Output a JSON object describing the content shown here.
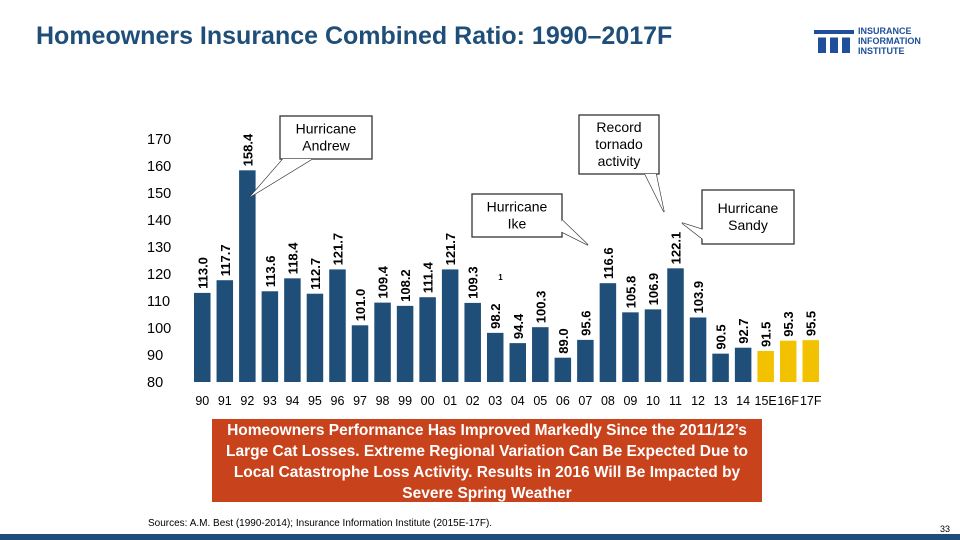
{
  "title": "Homeowners Insurance Combined Ratio: 1990–2017F",
  "logo": {
    "lines": [
      "INSURANCE",
      "INFORMATION",
      "INSTITUTE"
    ],
    "icon": "iii-logo-icon"
  },
  "chart_data": {
    "type": "bar",
    "categories": [
      "90",
      "91",
      "92",
      "93",
      "94",
      "95",
      "96",
      "97",
      "98",
      "99",
      "00",
      "01",
      "02",
      "03",
      "04",
      "05",
      "06",
      "07",
      "08",
      "09",
      "10",
      "11",
      "12",
      "13",
      "14",
      "15E",
      "16F",
      "17F"
    ],
    "values": [
      113.0,
      117.7,
      158.4,
      113.6,
      118.4,
      112.7,
      121.7,
      101.0,
      109.4,
      108.2,
      111.4,
      121.7,
      109.3,
      98.2,
      94.4,
      100.3,
      89.0,
      95.6,
      116.6,
      105.8,
      106.9,
      122.1,
      103.9,
      90.5,
      92.7,
      91.5,
      95.3,
      95.5
    ],
    "value_labels": [
      "113.0",
      "117.7",
      "158.4",
      "113.6",
      "118.4",
      "112.7",
      "121.7",
      "101.0",
      "109.4",
      "108.2",
      "111.4",
      "121.7",
      "109.3",
      "98.2",
      "94.4",
      "100.3",
      "89.0",
      "95.6",
      "116.6",
      "105.8",
      "106.9",
      "122.1",
      "103.9",
      "90.5",
      "92.7",
      "91.5",
      "95.3",
      "95.5"
    ],
    "forecast_categories": [
      "15E",
      "16F",
      "17F"
    ],
    "ylim": [
      80,
      170
    ],
    "yticks": [
      80,
      90,
      100,
      110,
      120,
      130,
      140,
      150,
      160,
      170
    ],
    "bar_color": "#1f4e79",
    "forecast_color": "#f2c200",
    "annotations": [
      {
        "category": "92",
        "lines": [
          "Hurricane",
          "Andrew"
        ]
      },
      {
        "category": "11",
        "lines": [
          "Record",
          "tornado",
          "activity"
        ]
      },
      {
        "category": "08",
        "lines": [
          "Hurricane",
          "Ike"
        ]
      },
      {
        "category": "12",
        "lines": [
          "Hurricane",
          "Sandy"
        ]
      }
    ],
    "stray_mark": "1"
  },
  "summary": "Homeowners Performance Has Improved Markedly Since the 2011/12’s Large Cat Losses. Extreme Regional Variation Can Be Expected Due to Local Catastrophe Loss Activity. Results in 2016 Will Be Impacted by Severe Spring Weather",
  "source": "Sources: A.M. Best (1990-2014); Insurance Information Institute (2015E-17F).",
  "page_number": "33",
  "colors": {
    "title": "#1f4e79",
    "summary_bg": "#c8421c",
    "bottom_bar": "#1f4e79"
  }
}
